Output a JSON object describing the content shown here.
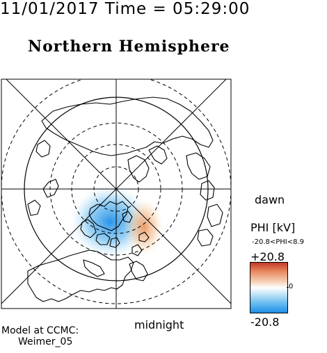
{
  "header": {
    "datetime": "11/01/2017 Time = 05:29:00",
    "title": "Northern Hemisphere"
  },
  "map": {
    "label_dawn": "dawn",
    "label_midnight": "midnight",
    "colors": {
      "negative": "#1f8fe6",
      "positive": "#e07848",
      "zero": "#ffffff"
    }
  },
  "legend": {
    "title": "PHI [kV]",
    "range": "-20.8<PHI<8.9",
    "max": "+20.8",
    "min": "-20.8",
    "zero": "0"
  },
  "credit": {
    "line1": "Model at CCMC:",
    "line2": "Weimer_05"
  }
}
